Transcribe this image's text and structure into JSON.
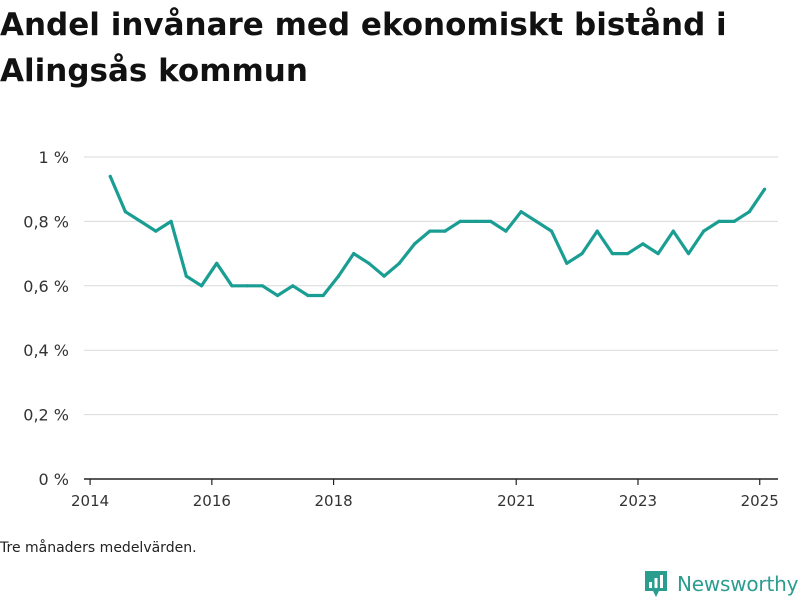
{
  "title": "Andel invånare med ekonomiskt bistånd i Alingsås kommun",
  "note": "Tre månaders medelvärden.",
  "brand": {
    "name": "Newsworthy",
    "icon": "bar-chart-logo-icon",
    "color": "#2a9d8f"
  },
  "chart_data": {
    "type": "line",
    "title": "Andel invånare med ekonomiskt bistånd i Alingsås kommun",
    "xlabel": "",
    "ylabel": "",
    "ylim": [
      0,
      1
    ],
    "xlim": [
      2013.9,
      2025.3
    ],
    "grid": true,
    "legend": "none",
    "line_color": "#1a9e93",
    "y_ticks": [
      {
        "value": 0,
        "label": "0 %"
      },
      {
        "value": 0.2,
        "label": "0,2 %"
      },
      {
        "value": 0.4,
        "label": "0,4 %"
      },
      {
        "value": 0.6,
        "label": "0,6 %"
      },
      {
        "value": 0.8,
        "label": "0,8 %"
      },
      {
        "value": 1.0,
        "label": "1 %"
      }
    ],
    "x_ticks": [
      {
        "value": 2014,
        "label": "2014"
      },
      {
        "value": 2016,
        "label": "2016"
      },
      {
        "value": 2018,
        "label": "2018"
      },
      {
        "value": 2021,
        "label": "2021"
      },
      {
        "value": 2023,
        "label": "2023"
      },
      {
        "value": 2025,
        "label": "2025"
      }
    ],
    "series": [
      {
        "x": [
          2014.33,
          2014.58,
          2014.83,
          2015.08,
          2015.33,
          2015.58,
          2015.83,
          2016.08,
          2016.33,
          2016.58,
          2016.83,
          2017.08,
          2017.33,
          2017.58,
          2017.83,
          2018.08,
          2018.33,
          2018.58,
          2018.83,
          2019.08,
          2019.33,
          2019.58,
          2019.83,
          2020.08,
          2020.33,
          2020.58,
          2020.83,
          2021.08,
          2021.33,
          2021.58,
          2021.83,
          2022.08,
          2022.33,
          2022.58,
          2022.83,
          2023.08,
          2023.33,
          2023.58,
          2023.83,
          2024.08,
          2024.33,
          2024.58,
          2024.83,
          2025.08
        ],
        "y": [
          0.94,
          0.83,
          0.8,
          0.77,
          0.8,
          0.63,
          0.6,
          0.67,
          0.6,
          0.6,
          0.6,
          0.57,
          0.6,
          0.57,
          0.57,
          0.63,
          0.7,
          0.67,
          0.63,
          0.67,
          0.73,
          0.77,
          0.77,
          0.8,
          0.8,
          0.8,
          0.77,
          0.83,
          0.8,
          0.77,
          0.67,
          0.7,
          0.77,
          0.7,
          0.7,
          0.73,
          0.7,
          0.77,
          0.7,
          0.77,
          0.8,
          0.8,
          0.83,
          0.9
        ]
      }
    ]
  }
}
